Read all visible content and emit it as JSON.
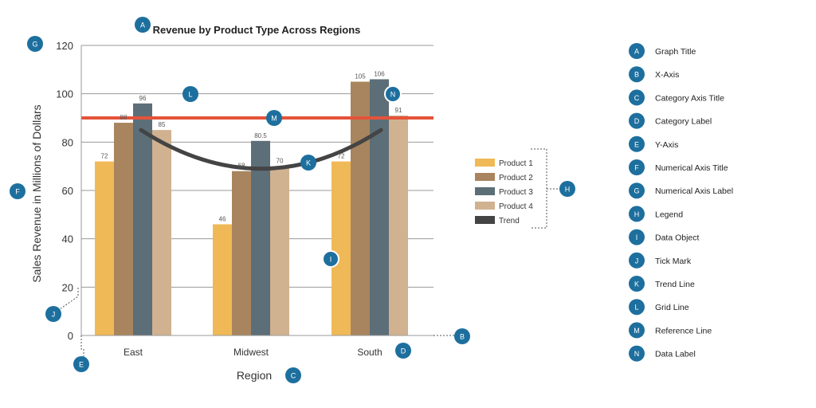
{
  "chart_data": {
    "type": "bar",
    "title": "Revenue by Product Type Across Regions",
    "xlabel": "Region",
    "ylabel": "Sales Revenue in Millions of Dollars",
    "ylim": [
      0,
      120
    ],
    "yticks": [
      0,
      20,
      40,
      60,
      80,
      100,
      120
    ],
    "grid": true,
    "legend_position": "right",
    "categories": [
      "East",
      "Midwest",
      "South"
    ],
    "series": [
      {
        "name": "Product 1",
        "color": "#f0b957",
        "values": [
          72,
          46,
          72
        ]
      },
      {
        "name": "Product 2",
        "color": "#a8855e",
        "values": [
          88,
          68,
          105
        ]
      },
      {
        "name": "Product 3",
        "color": "#5c6e78",
        "values": [
          96,
          80.5,
          106
        ]
      },
      {
        "name": "Product 4",
        "color": "#d0b190",
        "values": [
          85,
          70,
          91
        ]
      }
    ],
    "data_labels": [
      [
        "72",
        "88",
        "96",
        "85"
      ],
      [
        "46",
        "68",
        "80.5",
        "70"
      ],
      [
        "72",
        "105",
        "106",
        "91"
      ]
    ],
    "trend": {
      "name": "Trend",
      "color": "#444444",
      "values": [
        85,
        69,
        85
      ]
    },
    "reference_line": {
      "value": 90,
      "color": "#e4533a"
    }
  },
  "badge_color": "#1d6f9e",
  "annotations": [
    {
      "letter": "A",
      "label": "Graph Title"
    },
    {
      "letter": "B",
      "label": "X-Axis"
    },
    {
      "letter": "C",
      "label": "Category Axis Title"
    },
    {
      "letter": "D",
      "label": "Category Label"
    },
    {
      "letter": "E",
      "label": "Y-Axis"
    },
    {
      "letter": "F",
      "label": "Numerical Axis Title"
    },
    {
      "letter": "G",
      "label": "Numerical Axis Label"
    },
    {
      "letter": "H",
      "label": "Legend"
    },
    {
      "letter": "I",
      "label": "Data Object"
    },
    {
      "letter": "J",
      "label": "Tick Mark"
    },
    {
      "letter": "K",
      "label": "Trend Line"
    },
    {
      "letter": "L",
      "label": "Grid Line"
    },
    {
      "letter": "M",
      "label": "Reference Line"
    },
    {
      "letter": "N",
      "label": "Data Label"
    }
  ]
}
